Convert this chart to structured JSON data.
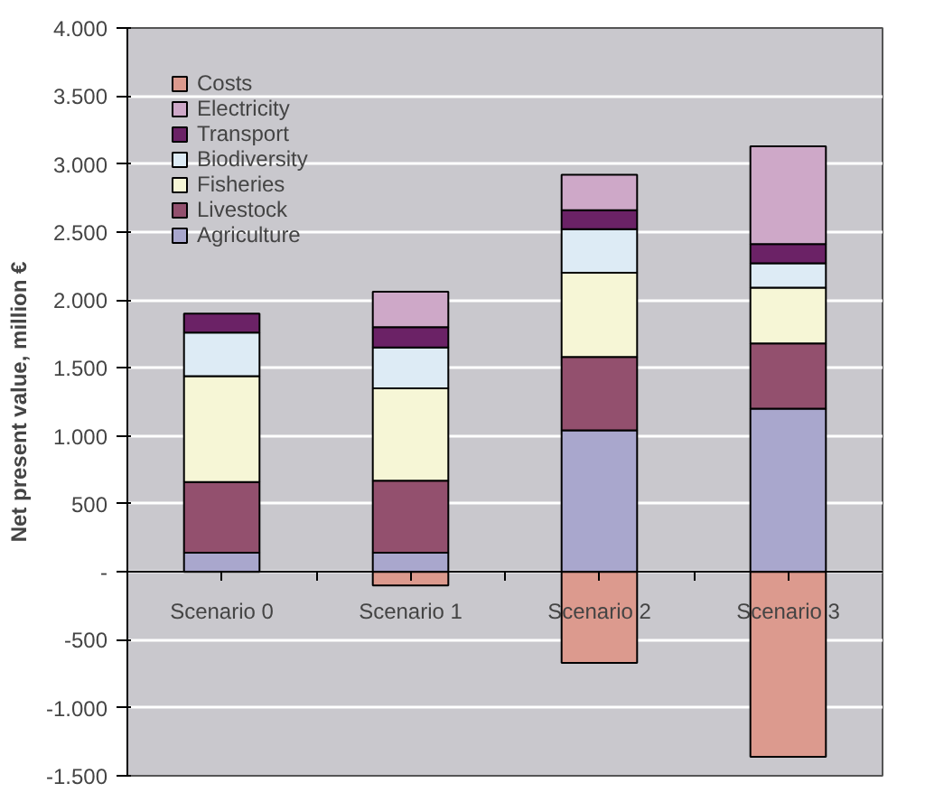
{
  "chart_data": {
    "type": "bar",
    "stacked": true,
    "ylabel": "Net present value, million €",
    "categories": [
      "Scenario 0",
      "Scenario 1",
      "Scenario 2",
      "Scenario 3"
    ],
    "series": [
      {
        "name": "Agriculture",
        "color": "#a9a7cd",
        "values": [
          140,
          140,
          1040,
          1200
        ]
      },
      {
        "name": "Livestock",
        "color": "#93506e",
        "values": [
          520,
          530,
          540,
          480
        ]
      },
      {
        "name": "Fisheries",
        "color": "#f6f6d6",
        "values": [
          780,
          680,
          620,
          410
        ]
      },
      {
        "name": "Biodiversity",
        "color": "#ddebf5",
        "values": [
          320,
          300,
          320,
          180
        ]
      },
      {
        "name": "Transport",
        "color": "#6b2266",
        "values": [
          140,
          150,
          140,
          140
        ]
      },
      {
        "name": "Electricity",
        "color": "#cea8c8",
        "values": [
          null,
          260,
          260,
          720
        ]
      },
      {
        "name": "Costs",
        "color": "#dc9a8e",
        "values": [
          null,
          -100,
          -670,
          -1360
        ]
      }
    ],
    "ylim": [
      -1500,
      4000
    ],
    "yticks": [
      {
        "value": -1500,
        "label": "-1.500"
      },
      {
        "value": -1000,
        "label": "-1.000"
      },
      {
        "value": -500,
        "label": "-500"
      },
      {
        "value": 0,
        "label": "-"
      },
      {
        "value": 500,
        "label": "500"
      },
      {
        "value": 1000,
        "label": "1.000"
      },
      {
        "value": 1500,
        "label": "1.500"
      },
      {
        "value": 2000,
        "label": "2.000"
      },
      {
        "value": 2500,
        "label": "2.500"
      },
      {
        "value": 3000,
        "label": "3.000"
      },
      {
        "value": 3500,
        "label": "3.500"
      },
      {
        "value": 4000,
        "label": "4.000"
      }
    ],
    "grid": "y",
    "legend": "top left"
  }
}
